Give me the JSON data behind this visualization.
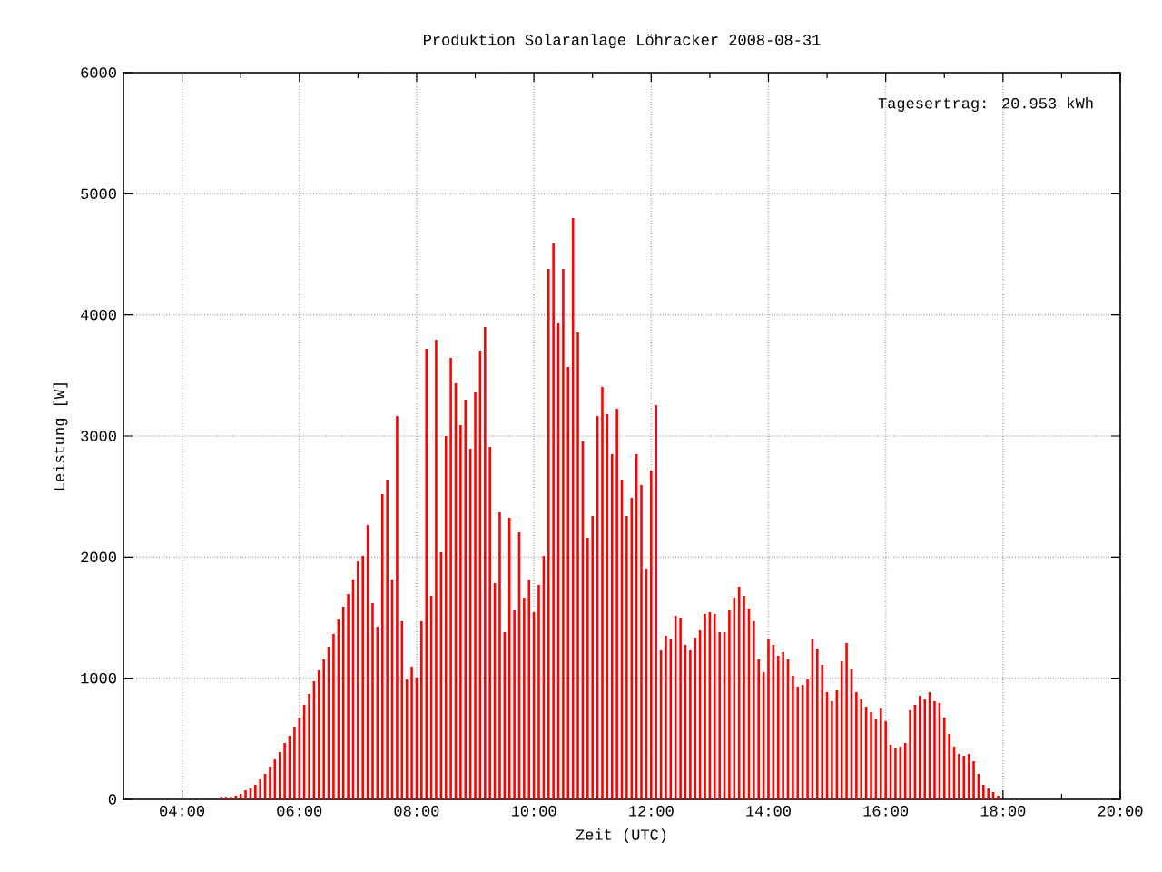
{
  "chart_data": {
    "type": "bar",
    "title": "Produktion Solaranlage Löhracker 2008-08-31",
    "xlabel": "Zeit (UTC)",
    "ylabel": "Leistung [W]",
    "annotations": [
      "Tagesertrag: 20.953 kWh"
    ],
    "color": "#ff0000",
    "grid": true,
    "xlim": [
      3,
      20
    ],
    "xticks": [
      {
        "value": 4,
        "label": "04:00"
      },
      {
        "value": 5,
        "label": null
      },
      {
        "value": 6,
        "label": "06:00"
      },
      {
        "value": 7,
        "label": null
      },
      {
        "value": 8,
        "label": "08:00"
      },
      {
        "value": 9,
        "label": null
      },
      {
        "value": 10,
        "label": "10:00"
      },
      {
        "value": 11,
        "label": null
      },
      {
        "value": 12,
        "label": "12:00"
      },
      {
        "value": 13,
        "label": null
      },
      {
        "value": 14,
        "label": "14:00"
      },
      {
        "value": 15,
        "label": null
      },
      {
        "value": 16,
        "label": "16:00"
      },
      {
        "value": 17,
        "label": null
      },
      {
        "value": 18,
        "label": "18:00"
      },
      {
        "value": 19,
        "label": null
      },
      {
        "value": 20,
        "label": "20:00"
      }
    ],
    "ylim": [
      0,
      6000
    ],
    "yticks": [
      0,
      1000,
      2000,
      3000,
      4000,
      5000,
      6000
    ],
    "x": [
      4.667,
      4.75,
      4.833,
      4.917,
      5,
      5.083,
      5.167,
      5.25,
      5.333,
      5.417,
      5.5,
      5.583,
      5.667,
      5.75,
      5.833,
      5.917,
      6,
      6.083,
      6.167,
      6.25,
      6.333,
      6.417,
      6.5,
      6.583,
      6.667,
      6.75,
      6.833,
      6.917,
      7,
      7.083,
      7.167,
      7.25,
      7.333,
      7.417,
      7.5,
      7.583,
      7.667,
      7.75,
      7.833,
      7.917,
      8,
      8.083,
      8.167,
      8.25,
      8.333,
      8.417,
      8.5,
      8.583,
      8.667,
      8.75,
      8.833,
      8.917,
      9,
      9.083,
      9.167,
      9.25,
      9.333,
      9.417,
      9.5,
      9.583,
      9.667,
      9.75,
      9.833,
      9.917,
      10,
      10.083,
      10.167,
      10.25,
      10.333,
      10.417,
      10.5,
      10.583,
      10.667,
      10.75,
      10.833,
      10.917,
      11,
      11.083,
      11.167,
      11.25,
      11.333,
      11.417,
      11.5,
      11.583,
      11.667,
      11.75,
      11.833,
      11.917,
      12,
      12.083,
      12.167,
      12.25,
      12.333,
      12.417,
      12.5,
      12.583,
      12.667,
      12.75,
      12.833,
      12.917,
      13,
      13.083,
      13.167,
      13.25,
      13.333,
      13.417,
      13.5,
      13.583,
      13.667,
      13.75,
      13.833,
      13.917,
      14,
      14.083,
      14.167,
      14.25,
      14.333,
      14.417,
      14.5,
      14.583,
      14.667,
      14.75,
      14.833,
      14.917,
      15,
      15.083,
      15.167,
      15.25,
      15.333,
      15.417,
      15.5,
      15.583,
      15.667,
      15.75,
      15.833,
      15.917,
      16,
      16.083,
      16.167,
      16.25,
      16.333,
      16.417,
      16.5,
      16.583,
      16.667,
      16.75,
      16.833,
      16.917,
      17,
      17.083,
      17.167,
      17.25,
      17.333,
      17.417,
      17.5,
      17.583,
      17.667,
      17.75,
      17.833,
      17.917
    ],
    "values": [
      20,
      20,
      20,
      30,
      45,
      75,
      90,
      120,
      165,
      210,
      270,
      330,
      390,
      465,
      525,
      600,
      675,
      780,
      870,
      975,
      1065,
      1155,
      1260,
      1365,
      1485,
      1590,
      1695,
      1815,
      1965,
      2010,
      2265,
      1620,
      1425,
      2520,
      2640,
      1815,
      3165,
      1470,
      990,
      1095,
      1005,
      1470,
      3720,
      1680,
      3795,
      2040,
      3000,
      3645,
      3435,
      3090,
      3300,
      2895,
      3360,
      3705,
      3900,
      2910,
      1785,
      2370,
      1380,
      2325,
      1560,
      2205,
      1665,
      1815,
      1545,
      1770,
      2010,
      4380,
      4590,
      3930,
      4380,
      3570,
      4800,
      3855,
      2955,
      2160,
      2340,
      3165,
      3405,
      3180,
      2850,
      3225,
      2640,
      2340,
      2490,
      2850,
      2595,
      1905,
      2715,
      3255,
      1230,
      1350,
      1320,
      1515,
      1500,
      1275,
      1230,
      1335,
      1395,
      1530,
      1545,
      1530,
      1380,
      1380,
      1560,
      1665,
      1755,
      1680,
      1575,
      1470,
      1155,
      1050,
      1320,
      1275,
      1185,
      1215,
      1155,
      1020,
      930,
      945,
      990,
      1320,
      1245,
      1110,
      885,
      810,
      900,
      1140,
      1290,
      1080,
      885,
      825,
      765,
      720,
      660,
      750,
      645,
      450,
      420,
      435,
      465,
      735,
      780,
      855,
      825,
      885,
      810,
      795,
      675,
      540,
      435,
      375,
      360,
      375,
      315,
      210,
      120,
      90,
      60,
      30
    ]
  }
}
